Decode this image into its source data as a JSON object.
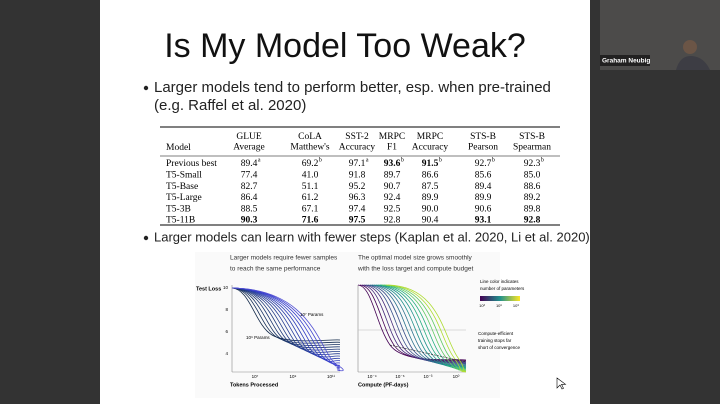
{
  "slide": {
    "title": "Is My Model Too Weak?",
    "bullets": [
      {
        "lines": [
          "Larger models tend to perform better, esp. when pre-trained",
          "(e.g. Raffel et al. 2020)"
        ]
      },
      {
        "lines": [
          "Larger models can learn with fewer steps (Kaplan et al. 2020, Li et al. 2020)"
        ]
      }
    ]
  },
  "table": {
    "header": [
      [
        "Model"
      ],
      [
        "GLUE",
        "Average"
      ],
      [
        "CoLA",
        "Matthew's"
      ],
      [
        "SST-2",
        "Accuracy"
      ],
      [
        "MRPC",
        "F1"
      ],
      [
        "MRPC",
        "Accuracy"
      ],
      [
        "STS-B",
        "Pearson"
      ],
      [
        "STS-B",
        "Spearman"
      ]
    ],
    "rows": [
      [
        "Previous best",
        {
          "text": "89.4",
          "sup": "a"
        },
        {
          "text": "69.2",
          "sup": "b"
        },
        {
          "text": "97.1",
          "sup": "a"
        },
        {
          "text": "93.6",
          "sup": "b",
          "bold": true
        },
        {
          "text": "91.5",
          "sup": "b",
          "bold": true
        },
        {
          "text": "92.7",
          "sup": "b"
        },
        {
          "text": "92.3",
          "sup": "b"
        }
      ],
      [
        "T5-Small",
        "77.4",
        "41.0",
        "91.8",
        "89.7",
        "86.6",
        "85.6",
        "85.0"
      ],
      [
        "T5-Base",
        "82.7",
        "51.1",
        "95.2",
        "90.7",
        "87.5",
        "89.4",
        "88.6"
      ],
      [
        "T5-Large",
        "86.4",
        "61.2",
        "96.3",
        "92.4",
        "89.9",
        "89.9",
        "89.2"
      ],
      [
        "T5-3B",
        "88.5",
        "67.1",
        "97.4",
        "92.5",
        "90.0",
        "90.6",
        "89.8"
      ],
      [
        "T5-11B",
        {
          "text": "90.3",
          "bold": true
        },
        {
          "text": "71.6",
          "bold": true
        },
        {
          "text": "97.5",
          "bold": true
        },
        "92.8",
        "90.4",
        {
          "text": "93.1",
          "bold": true
        },
        {
          "text": "92.8",
          "bold": true
        }
      ]
    ]
  },
  "figure": {
    "left": {
      "caption": [
        "Larger models require fewer samples",
        "to reach the same performance"
      ],
      "y_label": "Test Loss",
      "y_ticks": [
        "10",
        "8",
        "6",
        "4"
      ],
      "x_ticks": [
        "10⁷",
        "10⁹",
        "10¹¹"
      ],
      "x_label": "Tokens Processed",
      "annotations": [
        "10⁷ Params",
        "10⁹ Params"
      ]
    },
    "right": {
      "caption": [
        "The optimal model size grows smoothly",
        "with the loss target and compute budget"
      ],
      "x_ticks": [
        "10⁻⁹",
        "10⁻⁶",
        "10⁻³",
        "10⁰"
      ],
      "x_label": "Compute (PF-days)",
      "legend": [
        "Line color indicates",
        "number of parameters"
      ],
      "legend_ticks": [
        "10³",
        "10⁶",
        "10⁹"
      ],
      "annotation": [
        "Compute-efficient",
        "training stops far",
        "short of convergence"
      ]
    }
  },
  "video": {
    "participant_name": "Graham Neubig"
  }
}
